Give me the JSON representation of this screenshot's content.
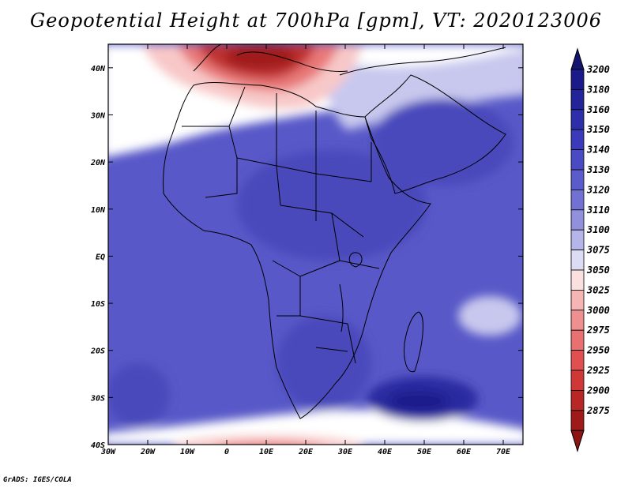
{
  "title": "Geopotential Height at 700hPa [gpm], VT: 2020123006",
  "credit": "GrADS: IGES/COLA",
  "map": {
    "lon_range": [
      -30,
      75
    ],
    "lat_range": [
      -40,
      45
    ],
    "lon_ticks": [
      {
        "value": -30,
        "label": "30W"
      },
      {
        "value": -20,
        "label": "20W"
      },
      {
        "value": -10,
        "label": "10W"
      },
      {
        "value": 0,
        "label": "0"
      },
      {
        "value": 10,
        "label": "10E"
      },
      {
        "value": 20,
        "label": "20E"
      },
      {
        "value": 30,
        "label": "30E"
      },
      {
        "value": 40,
        "label": "40E"
      },
      {
        "value": 50,
        "label": "50E"
      },
      {
        "value": 60,
        "label": "60E"
      },
      {
        "value": 70,
        "label": "70E"
      }
    ],
    "lat_ticks": [
      {
        "value": 40,
        "label": "40N"
      },
      {
        "value": 30,
        "label": "30N"
      },
      {
        "value": 20,
        "label": "20N"
      },
      {
        "value": 10,
        "label": "10N"
      },
      {
        "value": 0,
        "label": "EQ"
      },
      {
        "value": -10,
        "label": "10S"
      },
      {
        "value": -20,
        "label": "20S"
      },
      {
        "value": -30,
        "label": "30S"
      },
      {
        "value": -40,
        "label": "40S"
      }
    ]
  },
  "colorbar": {
    "levels": [
      {
        "label": "3200",
        "color": "#1a1a8a"
      },
      {
        "label": "3180",
        "color": "#23239a"
      },
      {
        "label": "3160",
        "color": "#2e2eab"
      },
      {
        "label": "3150",
        "color": "#3a3abb"
      },
      {
        "label": "3140",
        "color": "#4a4ac4"
      },
      {
        "label": "3130",
        "color": "#5b5bcc"
      },
      {
        "label": "3120",
        "color": "#7171d4"
      },
      {
        "label": "3110",
        "color": "#9090dd"
      },
      {
        "label": "3100",
        "color": "#b5b5ea"
      },
      {
        "label": "3075",
        "color": "#dcdcf5"
      },
      {
        "label": "3050",
        "color": "#fbe0e0"
      },
      {
        "label": "3025",
        "color": "#f5b5b5"
      },
      {
        "label": "3000",
        "color": "#ef9090"
      },
      {
        "label": "2975",
        "color": "#e87070"
      },
      {
        "label": "2950",
        "color": "#e05050"
      },
      {
        "label": "2925",
        "color": "#d03838"
      },
      {
        "label": "2900",
        "color": "#b82626"
      },
      {
        "label": "2875",
        "color": "#a01a1a"
      }
    ],
    "top_color": "#14146e",
    "bottom_color": "#8c1414"
  },
  "field_colors": {
    "ocean_base": "#5858c8",
    "white_band": "#ffffff",
    "red_light": "#f8c8c8",
    "red_mid": "#e87878",
    "red_dark": "#c03030",
    "red_deep": "#a01a1a",
    "lavender": "#c8c8ee",
    "blue_mid": "#4848bc",
    "blue_deep": "#2a2aa0",
    "blue_core": "#1c1c8c"
  }
}
